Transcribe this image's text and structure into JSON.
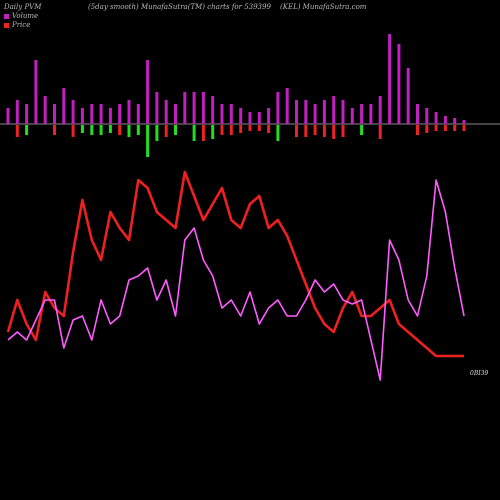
{
  "header": {
    "left": "Daily PVM",
    "middle": "(5day smooth) MunafaSutra(TM) charts for 539399",
    "right": "(KEL) MunafaSutra.com"
  },
  "legend": {
    "volume_label": "Volume",
    "price_label": "Price"
  },
  "last_value_label": "0BI39",
  "colors": {
    "background": "#000000",
    "volume_bar_default": "#c020c0",
    "volume_bar_up": "#22dd22",
    "volume_bar_down": "#ee2222",
    "baseline": "#888888",
    "pvm_line": "#ff5cff",
    "price_line": "#ee2020"
  },
  "chart_data": [
    {
      "type": "bar",
      "series": [
        {
          "values": [
            8,
            12,
            10,
            32,
            14,
            10,
            18,
            12,
            8,
            10,
            10,
            8,
            10,
            12,
            10,
            32,
            16,
            12,
            10,
            16,
            16,
            16,
            14,
            10,
            10,
            8,
            6,
            6,
            8,
            16,
            18,
            12,
            12,
            10,
            12,
            14,
            12,
            8,
            10,
            10,
            14,
            45,
            40,
            28,
            10,
            8,
            6,
            4,
            3,
            2
          ],
          "directions": [
            "m",
            "r",
            "g",
            "m",
            "m",
            "r",
            "m",
            "r",
            "g",
            "g",
            "g",
            "g",
            "r",
            "g",
            "g",
            "g",
            "g",
            "r",
            "g",
            "m",
            "g",
            "r",
            "g",
            "r",
            "r",
            "r",
            "r",
            "r",
            "r",
            "g",
            "m",
            "r",
            "r",
            "r",
            "r",
            "r",
            "r",
            "m",
            "g",
            "m",
            "r",
            "m",
            "m",
            "m",
            "r",
            "r",
            "r",
            "r",
            "r",
            "r"
          ]
        }
      ]
    },
    {
      "type": "line",
      "series": [
        {
          "values": [
            20,
            22,
            20,
            25,
            30,
            30,
            18,
            25,
            26,
            20,
            30,
            24,
            26,
            35,
            36,
            38,
            30,
            35,
            26,
            45,
            48,
            40,
            36,
            28,
            30,
            26,
            32,
            24,
            28,
            30,
            26,
            26,
            30,
            35,
            32,
            34,
            30,
            29,
            30,
            20,
            10,
            45,
            40,
            30,
            26,
            36,
            60,
            52,
            38,
            26
          ]
        },
        {
          "values": [
            22,
            30,
            24,
            20,
            32,
            28,
            26,
            42,
            55,
            45,
            40,
            52,
            48,
            45,
            60,
            58,
            52,
            50,
            48,
            62,
            56,
            50,
            54,
            58,
            50,
            48,
            54,
            56,
            48,
            50,
            46,
            40,
            34,
            28,
            24,
            22,
            28,
            32,
            26,
            26,
            28,
            30,
            24,
            22,
            20,
            18,
            16,
            16,
            16,
            16
          ]
        }
      ]
    }
  ]
}
